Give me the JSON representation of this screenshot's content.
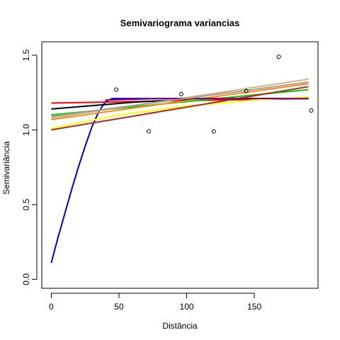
{
  "chart_data": {
    "type": "scatter",
    "title": "Semivariograma variancias",
    "xlabel": "Distância",
    "ylabel": "Semivariância",
    "xlim": [
      -7,
      197
    ],
    "ylim": [
      -0.06,
      1.59
    ],
    "xticks": [
      0,
      50,
      100,
      150
    ],
    "yticks": [
      0.0,
      0.5,
      1.0,
      1.5
    ],
    "xtick_labels": [
      "0",
      "50",
      "100",
      "150"
    ],
    "ytick_labels": [
      "0.0",
      "0.5",
      "1.0",
      "1.5"
    ],
    "grid": false,
    "legend": "none",
    "points": {
      "x": [
        48,
        72,
        96,
        120,
        144,
        168,
        192
      ],
      "y": [
        1.27,
        0.99,
        1.24,
        0.99,
        1.26,
        1.49,
        1.13
      ]
    },
    "series": [
      {
        "color": "#0000cc",
        "x": [
          0,
          5,
          10,
          15,
          20,
          25,
          30,
          35,
          40,
          45,
          50,
          60,
          80,
          100,
          120,
          140,
          160,
          190
        ],
        "y": [
          0.11,
          0.28,
          0.44,
          0.6,
          0.75,
          0.89,
          1.02,
          1.12,
          1.19,
          1.21,
          1.21,
          1.21,
          1.21,
          1.21,
          1.21,
          1.21,
          1.21,
          1.21
        ]
      },
      {
        "color": "#ff0000",
        "x": [
          0,
          190
        ],
        "y": [
          1.18,
          1.21
        ]
      },
      {
        "color": "#000000",
        "x": [
          0,
          20,
          40,
          60,
          80,
          100,
          120,
          140,
          160,
          190
        ],
        "y": [
          1.14,
          1.155,
          1.17,
          1.185,
          1.195,
          1.205,
          1.21,
          1.21,
          1.21,
          1.21
        ]
      },
      {
        "color": "#ffff00",
        "x": [
          0,
          50,
          100,
          150,
          190
        ],
        "y": [
          1.01,
          1.1,
          1.16,
          1.2,
          1.22
        ]
      },
      {
        "color": "#00cc00",
        "x": [
          0,
          190
        ],
        "y": [
          1.1,
          1.27
        ]
      },
      {
        "color": "#ff8c00",
        "x": [
          0,
          190
        ],
        "y": [
          1.07,
          1.31
        ]
      },
      {
        "color": "#d2b48c",
        "x": [
          0,
          190
        ],
        "y": [
          1.08,
          1.34
        ]
      },
      {
        "color": "#a52a2a",
        "x": [
          0,
          190
        ],
        "y": [
          1.0,
          1.29
        ]
      },
      {
        "color": "#800080",
        "x": [
          40,
          60,
          80,
          190
        ],
        "y": [
          1.2,
          1.205,
          1.21,
          1.21
        ]
      },
      {
        "color": "#a0a0a0",
        "x": [
          0,
          190
        ],
        "y": [
          1.09,
          1.32
        ]
      }
    ]
  }
}
